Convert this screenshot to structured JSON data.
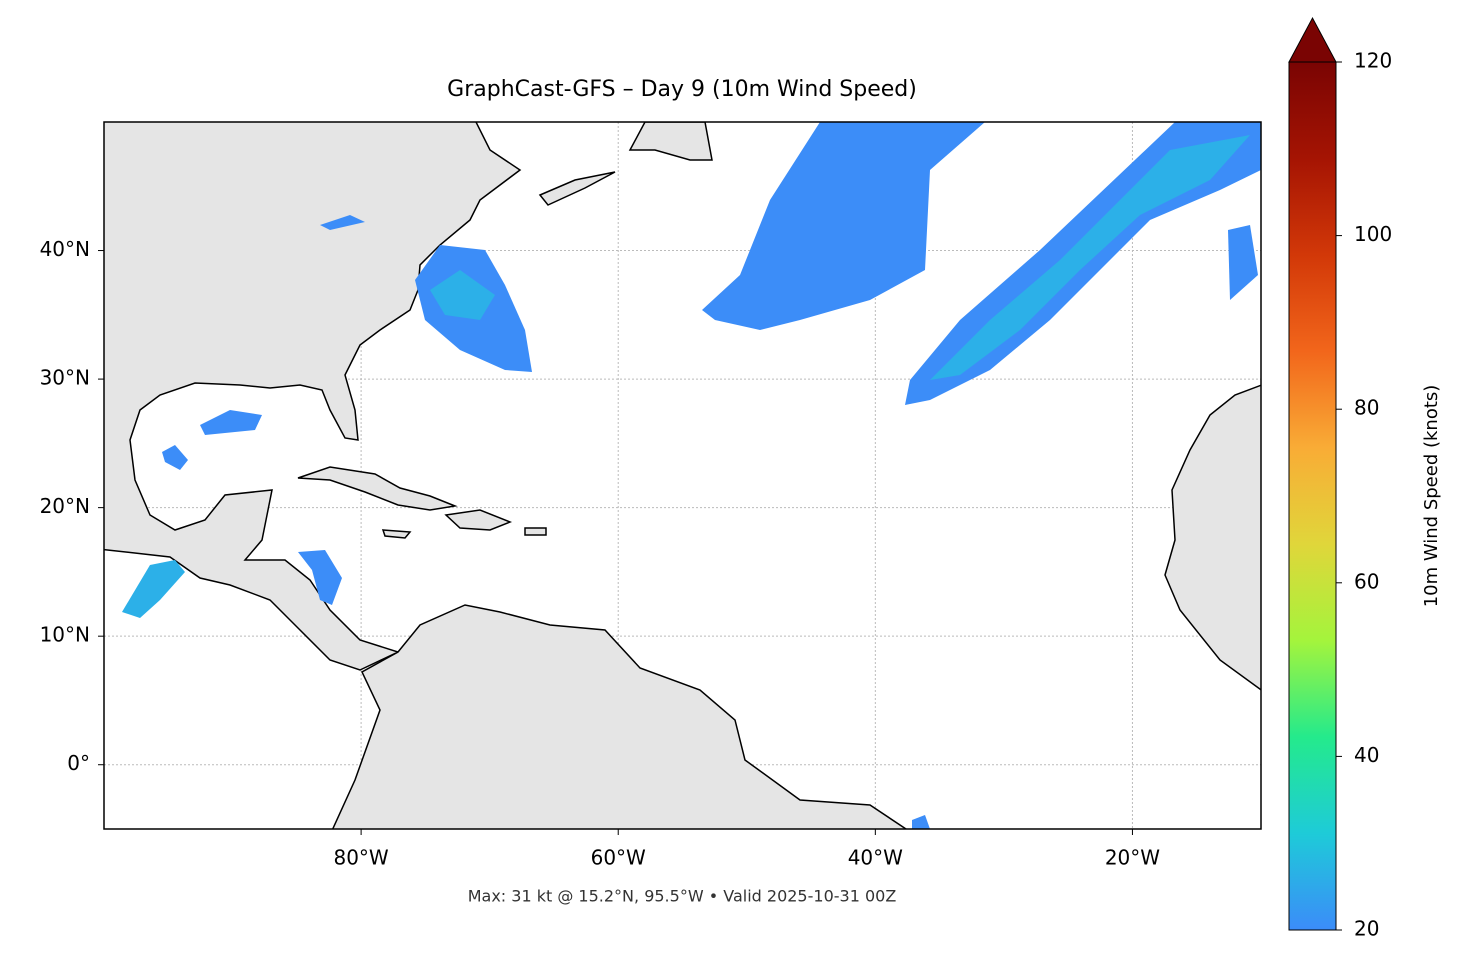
{
  "chart_data": {
    "type": "map",
    "title": "GraphCast-GFS – Day 9 (10m Wind Speed)",
    "note": "Max: 31 kt @ 15.2°N, 95.5°W • Valid 2025-10-31 00Z",
    "xlim": [
      -100,
      -10
    ],
    "ylim": [
      -5,
      50
    ],
    "xticks": [
      {
        "value": -80,
        "label": "80°W"
      },
      {
        "value": -60,
        "label": "60°W"
      },
      {
        "value": -40,
        "label": "40°W"
      },
      {
        "value": -20,
        "label": "20°W"
      }
    ],
    "yticks": [
      {
        "value": 0,
        "label": "0°"
      },
      {
        "value": 10,
        "label": "10°N"
      },
      {
        "value": 20,
        "label": "20°N"
      },
      {
        "value": 30,
        "label": "30°N"
      },
      {
        "value": 40,
        "label": "40°N"
      }
    ],
    "grid": true,
    "colorbar": {
      "label": "10m Wind Speed (knots)",
      "lim": [
        20,
        120
      ],
      "ticks": [
        20,
        40,
        60,
        80,
        100,
        120
      ],
      "colors": [
        "#3b8cf9",
        "#1ecbd8",
        "#24ea8c",
        "#a4f43c",
        "#e0d63a",
        "#f9ac36",
        "#f2661b",
        "#d23808",
        "#a51403",
        "#7a0403"
      ]
    }
  }
}
